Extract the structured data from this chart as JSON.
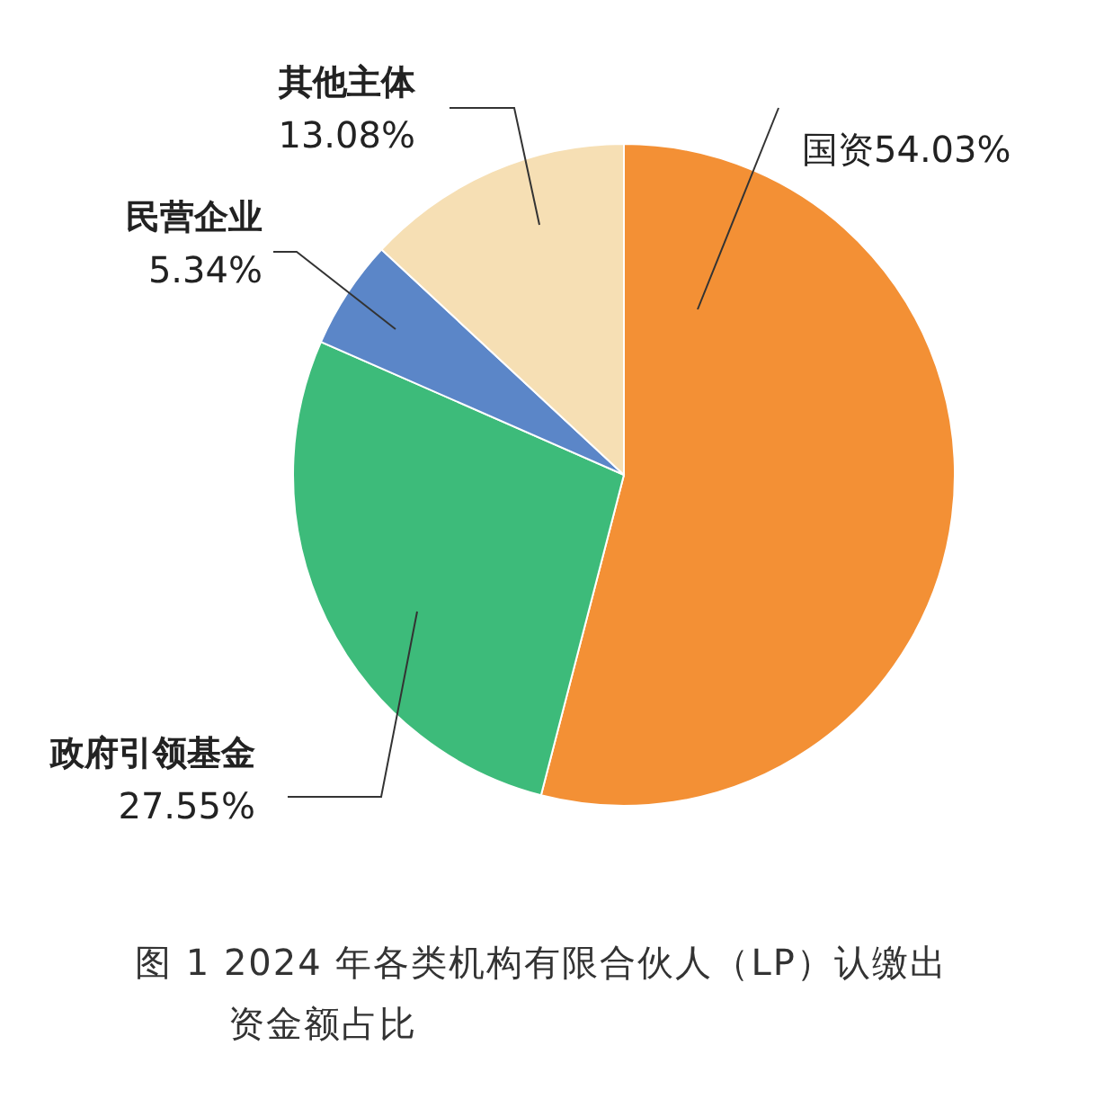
{
  "chart_data": {
    "type": "pie",
    "title": "图 1 2024 年各类机构有限合伙人（LP）认缴出资金额占比",
    "categories": [
      "国资",
      "政府引领基金",
      "民营企业",
      "其他主体"
    ],
    "values": [
      54.03,
      27.55,
      5.34,
      13.08
    ],
    "colors": [
      "#f39035",
      "#3dbb7a",
      "#5b86c8",
      "#f6dfb4"
    ],
    "value_labels": [
      "54.03%",
      "27.55%",
      "5.34%",
      "13.08%"
    ],
    "legend": false
  }
}
